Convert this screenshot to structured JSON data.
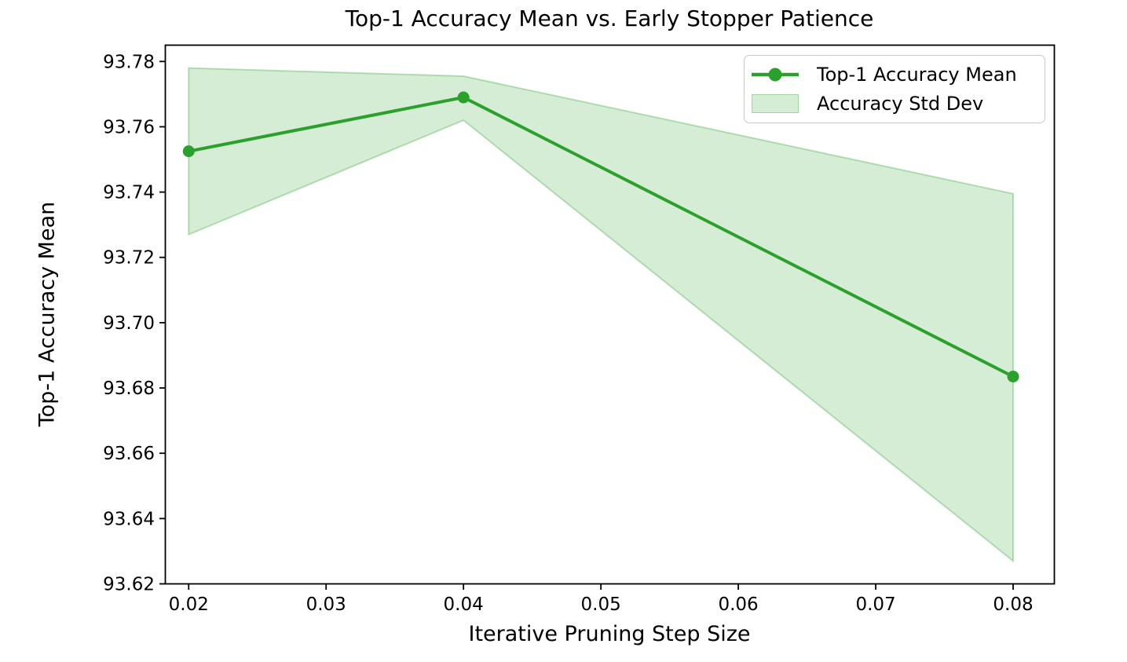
{
  "title": "Top-1 Accuracy Mean vs. Early Stopper Patience",
  "axes": {
    "xlabel": "Iterative Pruning Step Size",
    "ylabel": "Top-1 Accuracy Mean"
  },
  "legend": {
    "items": [
      {
        "label": "Top-1 Accuracy Mean",
        "type": "line-marker"
      },
      {
        "label": "Accuracy Std Dev",
        "type": "patch"
      }
    ],
    "position": "upper right"
  },
  "colors": {
    "line": "#2ca02c",
    "marker": "#2ca02c",
    "band_fill": "rgba(44,160,44,0.2)",
    "band_edge": "rgba(44,160,44,0.3)",
    "spine": "#000000",
    "text": "#000000",
    "legend_border": "#c9c9c9"
  },
  "chart_data": {
    "type": "line",
    "title": "Top-1 Accuracy Mean vs. Early Stopper Patience",
    "xlabel": "Iterative Pruning Step Size",
    "ylabel": "Top-1 Accuracy Mean",
    "x": [
      0.02,
      0.04,
      0.08
    ],
    "series": [
      {
        "name": "Top-1 Accuracy Mean",
        "values": [
          93.7525,
          93.769,
          93.6835
        ]
      }
    ],
    "band": {
      "name": "Accuracy Std Dev",
      "upper": [
        93.778,
        93.7755,
        93.7395
      ],
      "lower": [
        93.727,
        93.762,
        93.627
      ]
    },
    "std_dev": [
      0.0255,
      0.0067,
      0.0562
    ],
    "xlim": [
      0.0183,
      0.083
    ],
    "ylim": [
      93.62,
      93.785
    ],
    "xticks": [
      0.02,
      0.03,
      0.04,
      0.05,
      0.06,
      0.07,
      0.08
    ],
    "yticks": [
      93.62,
      93.64,
      93.66,
      93.68,
      93.7,
      93.72,
      93.74,
      93.76,
      93.78
    ],
    "grid": false,
    "legend_position": "upper right"
  }
}
